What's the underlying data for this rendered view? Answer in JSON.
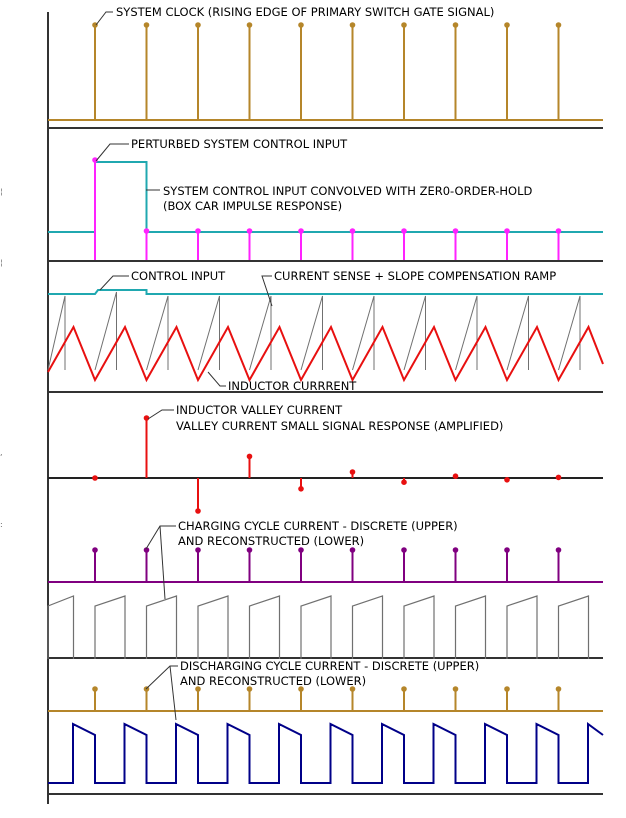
{
  "labels": {
    "clock": "SYSTEM CLOCK (RISING EDGE OF PRIMARY SWITCH GATE SIGNAL)",
    "perturbed": "PERTURBED SYSTEM CONTROL INPUT",
    "zoh_line1": "SYSTEM CONTROL INPUT CONVOLVED WITH ZER0-ORDER-HOLD",
    "zoh_line2": "(BOX CAR IMPULSE RESPONSE)",
    "control_input": "CONTROL INPUT",
    "current_sense": "CURRENT SENSE + SLOPE COMPENSATION RAMP",
    "inductor_current": "INDUCTOR CURRRENT",
    "valley_line1": "INDUCTOR VALLEY CURRENT",
    "valley_line2": "VALLEY CURRENT SMALL SIGNAL RESPONSE (AMPLIFIED)",
    "charging_line1": "CHARGING CYCLE CURRENT - DISCRETE (UPPER)",
    "charging_line2": "AND RECONSTRUCTED (LOWER)",
    "discharging_line1": "DISCHARGING CYCLE CURRENT - DISCRETE (UPPER)",
    "discharging_line2": "AND RECONSTRUCTED (LOWER)"
  },
  "colors": {
    "clock": "#b5862a",
    "control": "#20a8b0",
    "impulse": "#ff22ff",
    "inductor": "#e81010",
    "ramp": "#707070",
    "valley": "#e81010",
    "charging": "#800080",
    "discharging_pulse": "#000088",
    "axis": "#333333"
  },
  "valley_response": [
    0,
    1,
    -0.55,
    0.36,
    -0.18,
    0.1,
    -0.07,
    0.03,
    -0.03,
    0.01
  ],
  "charging_samples": [
    1,
    1,
    1,
    1,
    1,
    1,
    1,
    1,
    1,
    1
  ],
  "discharging_samples": [
    1,
    1,
    1,
    1,
    1,
    1,
    1,
    1,
    1,
    1
  ]
}
